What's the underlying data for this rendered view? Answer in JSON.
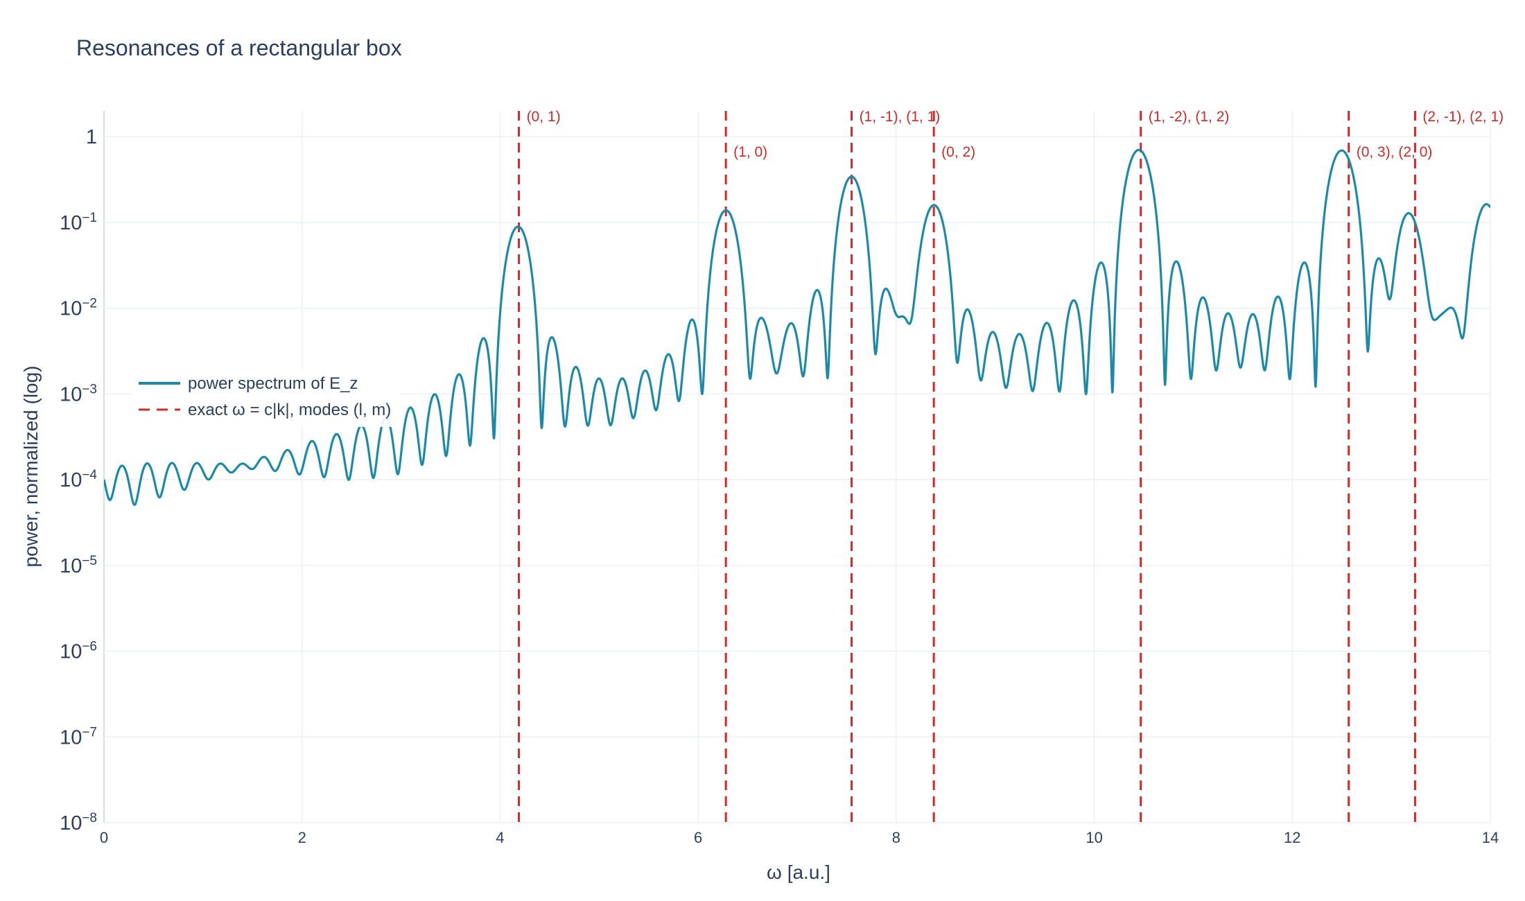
{
  "chart_data": {
    "type": "line",
    "title": "Resonances of a rectangular box",
    "xlabel": "ω [a.u.]",
    "ylabel": "power, normalized (log)",
    "xlim": [
      0,
      14
    ],
    "ylim_log10": [
      -8,
      0.3
    ],
    "y_scale": "log",
    "grid": true,
    "legend_position": "middle-left",
    "x_ticks": [
      0,
      2,
      4,
      6,
      8,
      10,
      12,
      14
    ],
    "y_ticks": [
      {
        "value": 1,
        "base": "1",
        "exp": ""
      },
      {
        "value": 0.1,
        "base": "10",
        "exp": "−1"
      },
      {
        "value": 0.01,
        "base": "10",
        "exp": "−2"
      },
      {
        "value": 0.001,
        "base": "10",
        "exp": "−3"
      },
      {
        "value": 0.0001,
        "base": "10",
        "exp": "−4"
      },
      {
        "value": 1e-05,
        "base": "10",
        "exp": "−5"
      },
      {
        "value": 1e-06,
        "base": "10",
        "exp": "−6"
      },
      {
        "value": 1e-07,
        "base": "10",
        "exp": "−7"
      },
      {
        "value": 1e-08,
        "base": "10",
        "exp": "−8"
      }
    ],
    "series": [
      {
        "name": "power spectrum of E_z",
        "color": "#1a8aa8",
        "style": "solid",
        "peaks": [
          {
            "x": 4.18,
            "y": 0.09,
            "width": 0.1,
            "side": 7e-05
          },
          {
            "x": 6.28,
            "y": 0.14,
            "width": 0.1,
            "side": 9e-05
          },
          {
            "x": 7.55,
            "y": 0.34,
            "width": 0.1,
            "side": 0.0002
          },
          {
            "x": 8.38,
            "y": 0.16,
            "width": 0.1,
            "side": 0.0001
          },
          {
            "x": 10.45,
            "y": 0.72,
            "width": 0.11,
            "side": 0.0005
          },
          {
            "x": 12.5,
            "y": 0.7,
            "width": 0.11,
            "side": 0.0005
          },
          {
            "x": 13.18,
            "y": 0.12,
            "width": 0.1,
            "side": 0.0001
          },
          {
            "x": 13.96,
            "y": 0.16,
            "width": 0.1,
            "side": 0.0001
          }
        ],
        "dc_value_at_0": 1.5e-05
      },
      {
        "name": "exact ω = c|k|, modes (l, m)",
        "color": "#d62728",
        "style": "dash",
        "lines": [
          {
            "x": 4.19,
            "label": "(0, 1)",
            "row": 0
          },
          {
            "x": 6.28,
            "label": "(1, 0)",
            "row": 1
          },
          {
            "x": 7.55,
            "label": "(1, -1), (1, 1)",
            "row": 0
          },
          {
            "x": 8.38,
            "label": "(0, 2)",
            "row": 1
          },
          {
            "x": 10.47,
            "label": "(1, -2), (1, 2)",
            "row": 0
          },
          {
            "x": 12.57,
            "label": "(0, 3), (2, 0)",
            "row": 1
          },
          {
            "x": 13.24,
            "label": "(2, -1), (2, 1)",
            "row": 0
          }
        ]
      }
    ]
  },
  "legend": {
    "items": [
      {
        "label": "power spectrum of E_z"
      },
      {
        "label": "exact ω = c|k|, modes (l, m)"
      }
    ]
  }
}
